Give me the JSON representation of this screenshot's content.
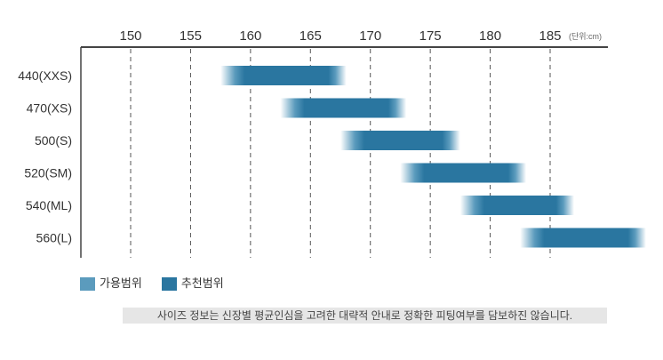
{
  "chart_data": {
    "type": "bar",
    "orientation": "horizontal-range",
    "unit_label": "(단위:cm)",
    "x_ticks": [
      150,
      155,
      160,
      165,
      170,
      175,
      180,
      185
    ],
    "xlim": [
      145.8,
      189.7
    ],
    "categories": [
      "440(XXS)",
      "470(XS)",
      "500(S)",
      "520(SM)",
      "540(ML)",
      "560(L)"
    ],
    "series": [
      {
        "name": "가용범위",
        "color": "#5b9bbd",
        "ranges": [
          [
            157.5,
            168
          ],
          [
            162.5,
            173
          ],
          [
            167.5,
            177.5
          ],
          [
            172.5,
            183
          ],
          [
            177.5,
            187
          ],
          [
            182.5,
            193
          ]
        ]
      },
      {
        "name": "추천범위",
        "color": "#2a76a0",
        "ranges": [
          [
            159.5,
            166.5
          ],
          [
            164.5,
            171.5
          ],
          [
            169.5,
            176
          ],
          [
            174.5,
            181.5
          ],
          [
            179.5,
            185.5
          ],
          [
            184.5,
            191.5
          ]
        ]
      }
    ],
    "grid": "vertical-dashed",
    "legend": "bottom-left"
  },
  "note": "사이즈 정보는 신장별 평균인심을 고려한 대략적 안내로 정확한 피팅여부를 담보하진 않습니다."
}
